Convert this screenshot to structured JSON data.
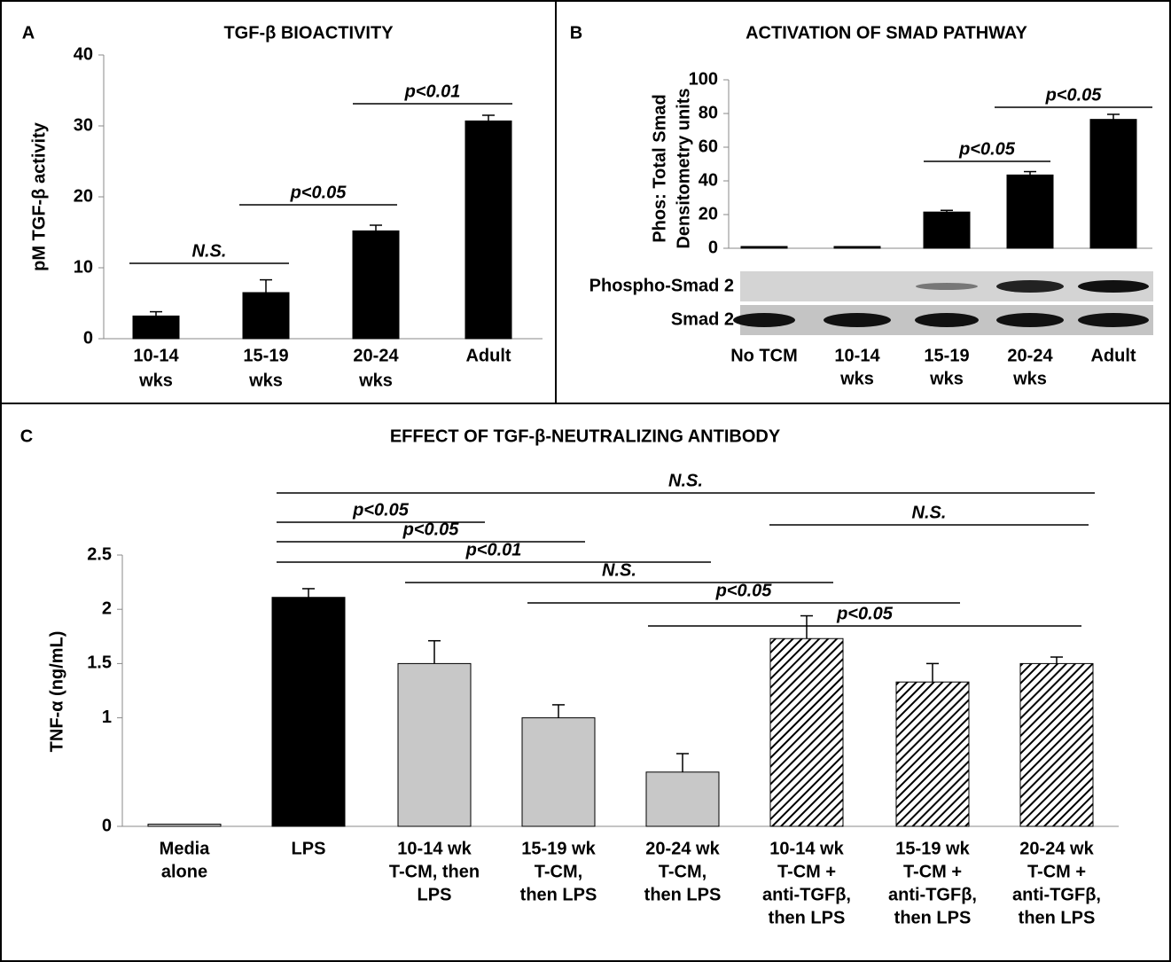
{
  "chart_data": [
    {
      "type": "bar",
      "panel": "A",
      "title": "TGF-β BIOACTIVITY",
      "ylabel": [
        "pM TGF-β activity"
      ],
      "categories": [
        [
          "10-14",
          "wks"
        ],
        [
          "15-19",
          "wks"
        ],
        [
          "20-24",
          "wks"
        ],
        [
          "Adult"
        ]
      ],
      "values": [
        3.2,
        6.5,
        15.2,
        30.7
      ],
      "errors": [
        0.6,
        1.8,
        0.8,
        0.8
      ],
      "colors": [
        "#000000",
        "#000000",
        "#000000",
        "#000000"
      ],
      "hatched": [
        false,
        false,
        false,
        false
      ],
      "ylim": [
        0,
        40
      ],
      "yticks": [
        0,
        10,
        20,
        30,
        40
      ],
      "annotations": [
        "N.S.",
        "p<0.05",
        "p<0.01"
      ]
    },
    {
      "type": "bar",
      "panel": "B",
      "title": "ACTIVATION OF SMAD PATHWAY",
      "ylabel": [
        "Phos: Total Smad",
        "Densitometry units"
      ],
      "categories": [
        [
          "No TCM"
        ],
        [
          "10-14",
          "wks"
        ],
        [
          "15-19",
          "wks"
        ],
        [
          "20-24",
          "wks"
        ],
        [
          "Adult"
        ]
      ],
      "values": [
        0,
        0,
        21.5,
        43.5,
        76.5
      ],
      "errors": [
        0,
        0,
        1,
        2,
        3
      ],
      "colors": [
        "#000000",
        "#000000",
        "#000000",
        "#000000",
        "#000000"
      ],
      "hatched": [
        false,
        false,
        false,
        false,
        false
      ],
      "ylim": [
        0,
        100
      ],
      "yticks": [
        0,
        20,
        40,
        60,
        80,
        100
      ],
      "annotations": [
        "p<0.05",
        "p<0.05"
      ],
      "blot_rows": [
        "Phospho-Smad 2",
        "Smad 2"
      ]
    },
    {
      "type": "bar",
      "panel": "C",
      "title": "EFFECT OF TGF-β-NEUTRALIZING ANTIBODY",
      "ylabel": [
        "TNF-α (ng/mL)"
      ],
      "categories": [
        [
          "Media",
          "alone"
        ],
        [
          "LPS"
        ],
        [
          "10-14 wk",
          "T-CM, then",
          "LPS"
        ],
        [
          "15-19 wk",
          "T-CM,",
          "then LPS"
        ],
        [
          "20-24 wk",
          "T-CM,",
          "then LPS"
        ],
        [
          "10-14 wk",
          "T-CM +",
          "anti-TGFβ,",
          "then LPS"
        ],
        [
          "15-19 wk",
          "T-CM +",
          "anti-TGFβ,",
          "then LPS"
        ],
        [
          "20-24 wk",
          "T-CM +",
          "anti-TGFβ,",
          "then LPS"
        ]
      ],
      "values": [
        0.02,
        2.11,
        1.5,
        1.0,
        0.5,
        1.73,
        1.33,
        1.5
      ],
      "errors": [
        0,
        0.08,
        0.21,
        0.12,
        0.17,
        0.21,
        0.17,
        0.06
      ],
      "colors": [
        "#c8c8c8",
        "#000000",
        "#c8c8c8",
        "#c8c8c8",
        "#c8c8c8",
        "#ffffff",
        "#ffffff",
        "#ffffff"
      ],
      "hatched": [
        false,
        false,
        false,
        false,
        false,
        true,
        true,
        true
      ],
      "ylim": [
        0,
        2.5
      ],
      "yticks": [
        0,
        1,
        1.5,
        2,
        2.5
      ],
      "annotations": [
        "N.S.",
        "N.S.",
        "p<0.05",
        "p<0.05",
        "p<0.01",
        "N.S.",
        "p<0.05",
        "p<0.05"
      ]
    }
  ]
}
